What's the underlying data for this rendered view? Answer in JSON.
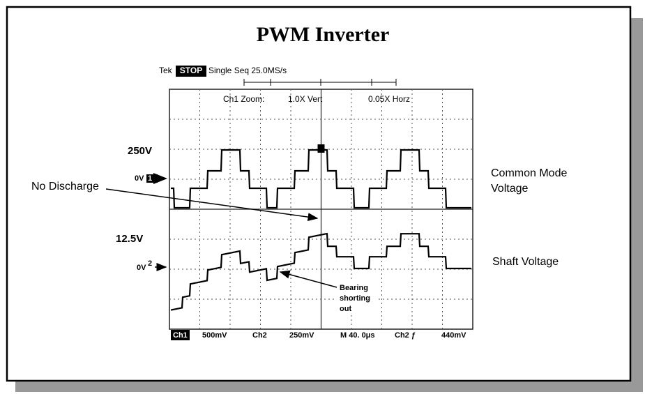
{
  "header": {
    "title": "PWM Inverter"
  },
  "scope": {
    "status": {
      "brand": "Tek",
      "state": "STOP",
      "mode": "Single Seq 25.0MS/s"
    },
    "zoom": {
      "label": "Ch1 Zoom:",
      "vert": "1.0X Vert",
      "horz": "0.05X Horz"
    },
    "footer": [
      "Ch1",
      "500mV",
      "Ch2",
      "250mV",
      "M 40. 0μs",
      "Ch2 ƒ",
      "440mV"
    ]
  },
  "labels": {
    "ch1_scale": "250V",
    "ch1_zero": "0V",
    "ch1_marker": "1",
    "no_discharge": "No Discharge",
    "ch2_scale": "12.5V",
    "ch2_zero": "0V",
    "ch2_marker": "2",
    "common_mode": [
      "Common Mode",
      "Voltage"
    ],
    "shaft_voltage": "Shaft Voltage",
    "bearing": [
      "Bearing",
      "shorting",
      "out"
    ]
  }
}
